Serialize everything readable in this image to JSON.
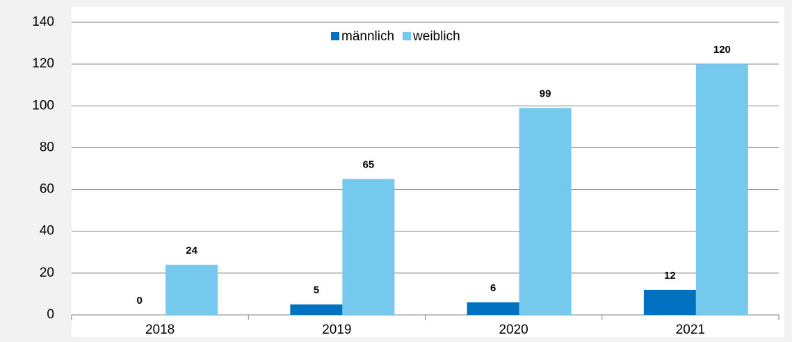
{
  "chart_data": {
    "type": "bar",
    "categories": [
      "2018",
      "2019",
      "2020",
      "2021"
    ],
    "series": [
      {
        "name": "männlich",
        "color": "#0070c0",
        "values": [
          0,
          5,
          6,
          12
        ]
      },
      {
        "name": "weiblich",
        "color": "#75c9ed",
        "values": [
          24,
          65,
          99,
          120
        ]
      }
    ],
    "ylim": [
      0,
      140
    ],
    "yticks": [
      0,
      20,
      40,
      60,
      80,
      100,
      120,
      140
    ],
    "grid": true,
    "legend": "top"
  }
}
